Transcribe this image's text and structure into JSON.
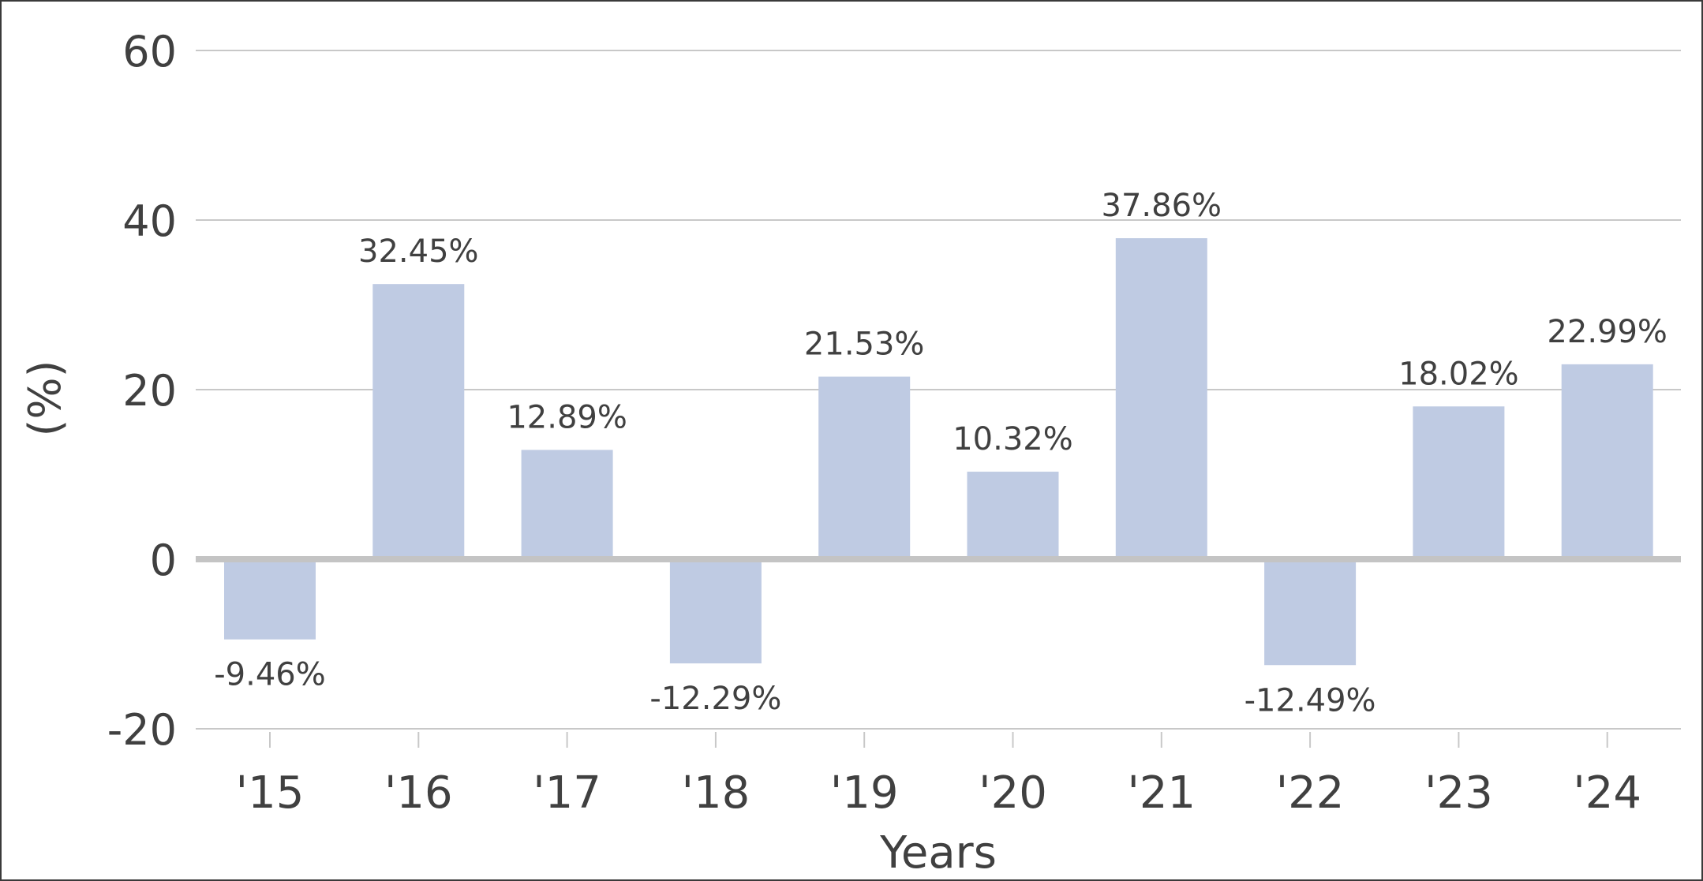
{
  "chart_data": {
    "type": "bar",
    "title": "",
    "xlabel": "Years",
    "ylabel": "(%)",
    "categories": [
      "'15",
      "'16",
      "'17",
      "'18",
      "'19",
      "'20",
      "'21",
      "'22",
      "'23",
      "'24"
    ],
    "values": [
      -9.46,
      32.45,
      12.89,
      -12.29,
      21.53,
      10.32,
      37.86,
      -12.49,
      18.02,
      22.99
    ],
    "data_labels": [
      "-9.46%",
      "32.45%",
      "12.89%",
      "-12.29%",
      "21.53%",
      "10.32%",
      "37.86%",
      "-12.49%",
      "18.02%",
      "22.99%"
    ],
    "ylim": [
      -20,
      60
    ],
    "yticks": [
      -20,
      0,
      20,
      40,
      60
    ],
    "ytick_labels": [
      "-20",
      "0",
      "20",
      "40",
      "60"
    ],
    "grid": true,
    "legend": "none",
    "colors": {
      "bar": "#bfcbe3",
      "gridline": "#c8c8c8",
      "zero_line": "#c4c4c4",
      "text": "#404040",
      "border": "#3a3a3a"
    }
  }
}
